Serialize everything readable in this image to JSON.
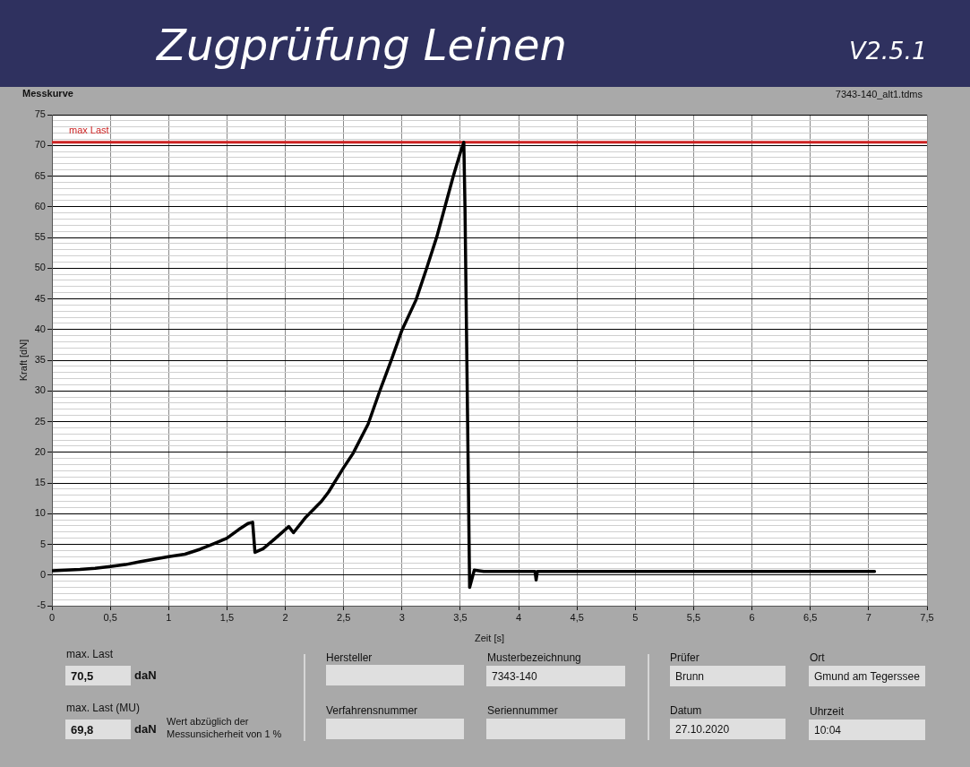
{
  "chart_data": {
    "type": "line",
    "title": "Zugprüfung Leinen",
    "xlabel": "Zeit [s]",
    "ylabel": "Kraft [dN]",
    "x": [
      0,
      0.12,
      0.24,
      0.37,
      0.5,
      0.63,
      0.76,
      0.88,
      1.0,
      1.14,
      1.27,
      1.4,
      1.5,
      1.6,
      1.68,
      1.72,
      1.74,
      1.81,
      1.91,
      2.03,
      2.07,
      2.17,
      2.31,
      2.37,
      2.5,
      2.58,
      2.71,
      2.81,
      2.91,
      3.0,
      3.12,
      3.21,
      3.3,
      3.37,
      3.44,
      3.5,
      3.53,
      3.54,
      3.58,
      3.62,
      3.7,
      4.0,
      4.14,
      4.15,
      4.16,
      4.5,
      5.0,
      5.5,
      6.0,
      6.5,
      7.05
    ],
    "series": [
      {
        "color": "#000000",
        "values": [
          0.7,
          0.8,
          0.9,
          1.1,
          1.4,
          1.7,
          2.2,
          2.6,
          3.0,
          3.4,
          4.2,
          5.2,
          6.0,
          7.4,
          8.4,
          8.6,
          3.7,
          4.3,
          5.9,
          7.9,
          6.9,
          9.3,
          12.0,
          13.5,
          17.5,
          19.8,
          24.6,
          30.0,
          35.1,
          39.9,
          44.8,
          49.9,
          55.2,
          60.1,
          65.0,
          68.8,
          70.5,
          60.0,
          -2.0,
          0.8,
          0.6,
          0.6,
          0.6,
          -0.8,
          0.6,
          0.6,
          0.6,
          0.6,
          0.6,
          0.6,
          0.6
        ]
      }
    ],
    "xlim": [
      0,
      7.5
    ],
    "xticks": [
      0,
      {
        "value": 0.5,
        "label": "0,5"
      },
      1,
      {
        "value": 1.5,
        "label": "1,5"
      },
      2,
      {
        "value": 2.5,
        "label": "2,5"
      },
      3,
      {
        "value": 3.5,
        "label": "3,5"
      },
      4,
      {
        "value": 4.5,
        "label": "4,5"
      },
      5,
      {
        "value": 5.5,
        "label": "5,5"
      },
      6,
      {
        "value": 6.5,
        "label": "6,5"
      },
      7,
      {
        "value": 7.5,
        "label": "7,5"
      }
    ],
    "ylim": [
      -5,
      75
    ],
    "yticks": [
      -5,
      {
        "value": -4,
        "label": null
      },
      {
        "value": -3,
        "label": null
      },
      {
        "value": -2,
        "label": null
      },
      {
        "value": -1,
        "label": null
      },
      0,
      {
        "value": 1,
        "label": null
      },
      {
        "value": 2,
        "label": null
      },
      {
        "value": 3,
        "label": null
      },
      {
        "value": 4,
        "label": null
      },
      5,
      {
        "value": 6,
        "label": null
      },
      {
        "value": 7,
        "label": null
      },
      {
        "value": 8,
        "label": null
      },
      {
        "value": 9,
        "label": null
      },
      10,
      {
        "value": 11,
        "label": null
      },
      {
        "value": 12,
        "label": null
      },
      {
        "value": 13,
        "label": null
      },
      {
        "value": 14,
        "label": null
      },
      15,
      {
        "value": 16,
        "label": null
      },
      {
        "value": 17,
        "label": null
      },
      {
        "value": 18,
        "label": null
      },
      {
        "value": 19,
        "label": null
      },
      20,
      {
        "value": 21,
        "label": null
      },
      {
        "value": 22,
        "label": null
      },
      {
        "value": 23,
        "label": null
      },
      {
        "value": 24,
        "label": null
      },
      25,
      {
        "value": 26,
        "label": null
      },
      {
        "value": 27,
        "label": null
      },
      {
        "value": 28,
        "label": null
      },
      {
        "value": 29,
        "label": null
      },
      30,
      {
        "value": 31,
        "label": null
      },
      {
        "value": 32,
        "label": null
      },
      {
        "value": 33,
        "label": null
      },
      {
        "value": 34,
        "label": null
      },
      35,
      {
        "value": 36,
        "label": null
      },
      {
        "value": 37,
        "label": null
      },
      {
        "value": 38,
        "label": null
      },
      {
        "value": 39,
        "label": null
      },
      40,
      {
        "value": 41,
        "label": null
      },
      {
        "value": 42,
        "label": null
      },
      {
        "value": 43,
        "label": null
      },
      {
        "value": 44,
        "label": null
      },
      45,
      {
        "value": 46,
        "label": null
      },
      {
        "value": 47,
        "label": null
      },
      {
        "value": 48,
        "label": null
      },
      {
        "value": 49,
        "label": null
      },
      50,
      {
        "value": 51,
        "label": null
      },
      {
        "value": 52,
        "label": null
      },
      {
        "value": 53,
        "label": null
      },
      {
        "value": 54,
        "label": null
      },
      55,
      {
        "value": 56,
        "label": null
      },
      {
        "value": 57,
        "label": null
      },
      {
        "value": 58,
        "label": null
      },
      {
        "value": 59,
        "label": null
      },
      60,
      {
        "value": 61,
        "label": null
      },
      {
        "value": 62,
        "label": null
      },
      {
        "value": 63,
        "label": null
      },
      {
        "value": 64,
        "label": null
      },
      65,
      {
        "value": 66,
        "label": null
      },
      {
        "value": 67,
        "label": null
      },
      {
        "value": 68,
        "label": null
      },
      {
        "value": 69,
        "label": null
      },
      70,
      {
        "value": 71,
        "label": null
      },
      {
        "value": 72,
        "label": null
      },
      {
        "value": 73,
        "label": null
      },
      {
        "value": 74,
        "label": null
      },
      75
    ],
    "grid": true,
    "marker": "none",
    "ref_lines": [
      {
        "axis": "y",
        "value": 70.5,
        "label": "max Last",
        "color": "#cc2222"
      }
    ],
    "annotations": [
      "Messkurve",
      "7343-140_alt1.tdms",
      "V2.5.1",
      "max. Last",
      "70,5",
      "daN",
      "max. Last (MU)",
      "69,8",
      "daN",
      "Wert abzüglich der Messunsicherheit von 1 %",
      "Hersteller",
      "Verfahrensnummer",
      "Musterbezeichnung",
      "7343-140",
      "Seriennummer",
      "Prüfer",
      "Brunn",
      "Datum",
      "27.10.2020",
      "Ort",
      "Gmund am Tegerssee",
      "Uhrzeit",
      "10:04"
    ]
  }
}
